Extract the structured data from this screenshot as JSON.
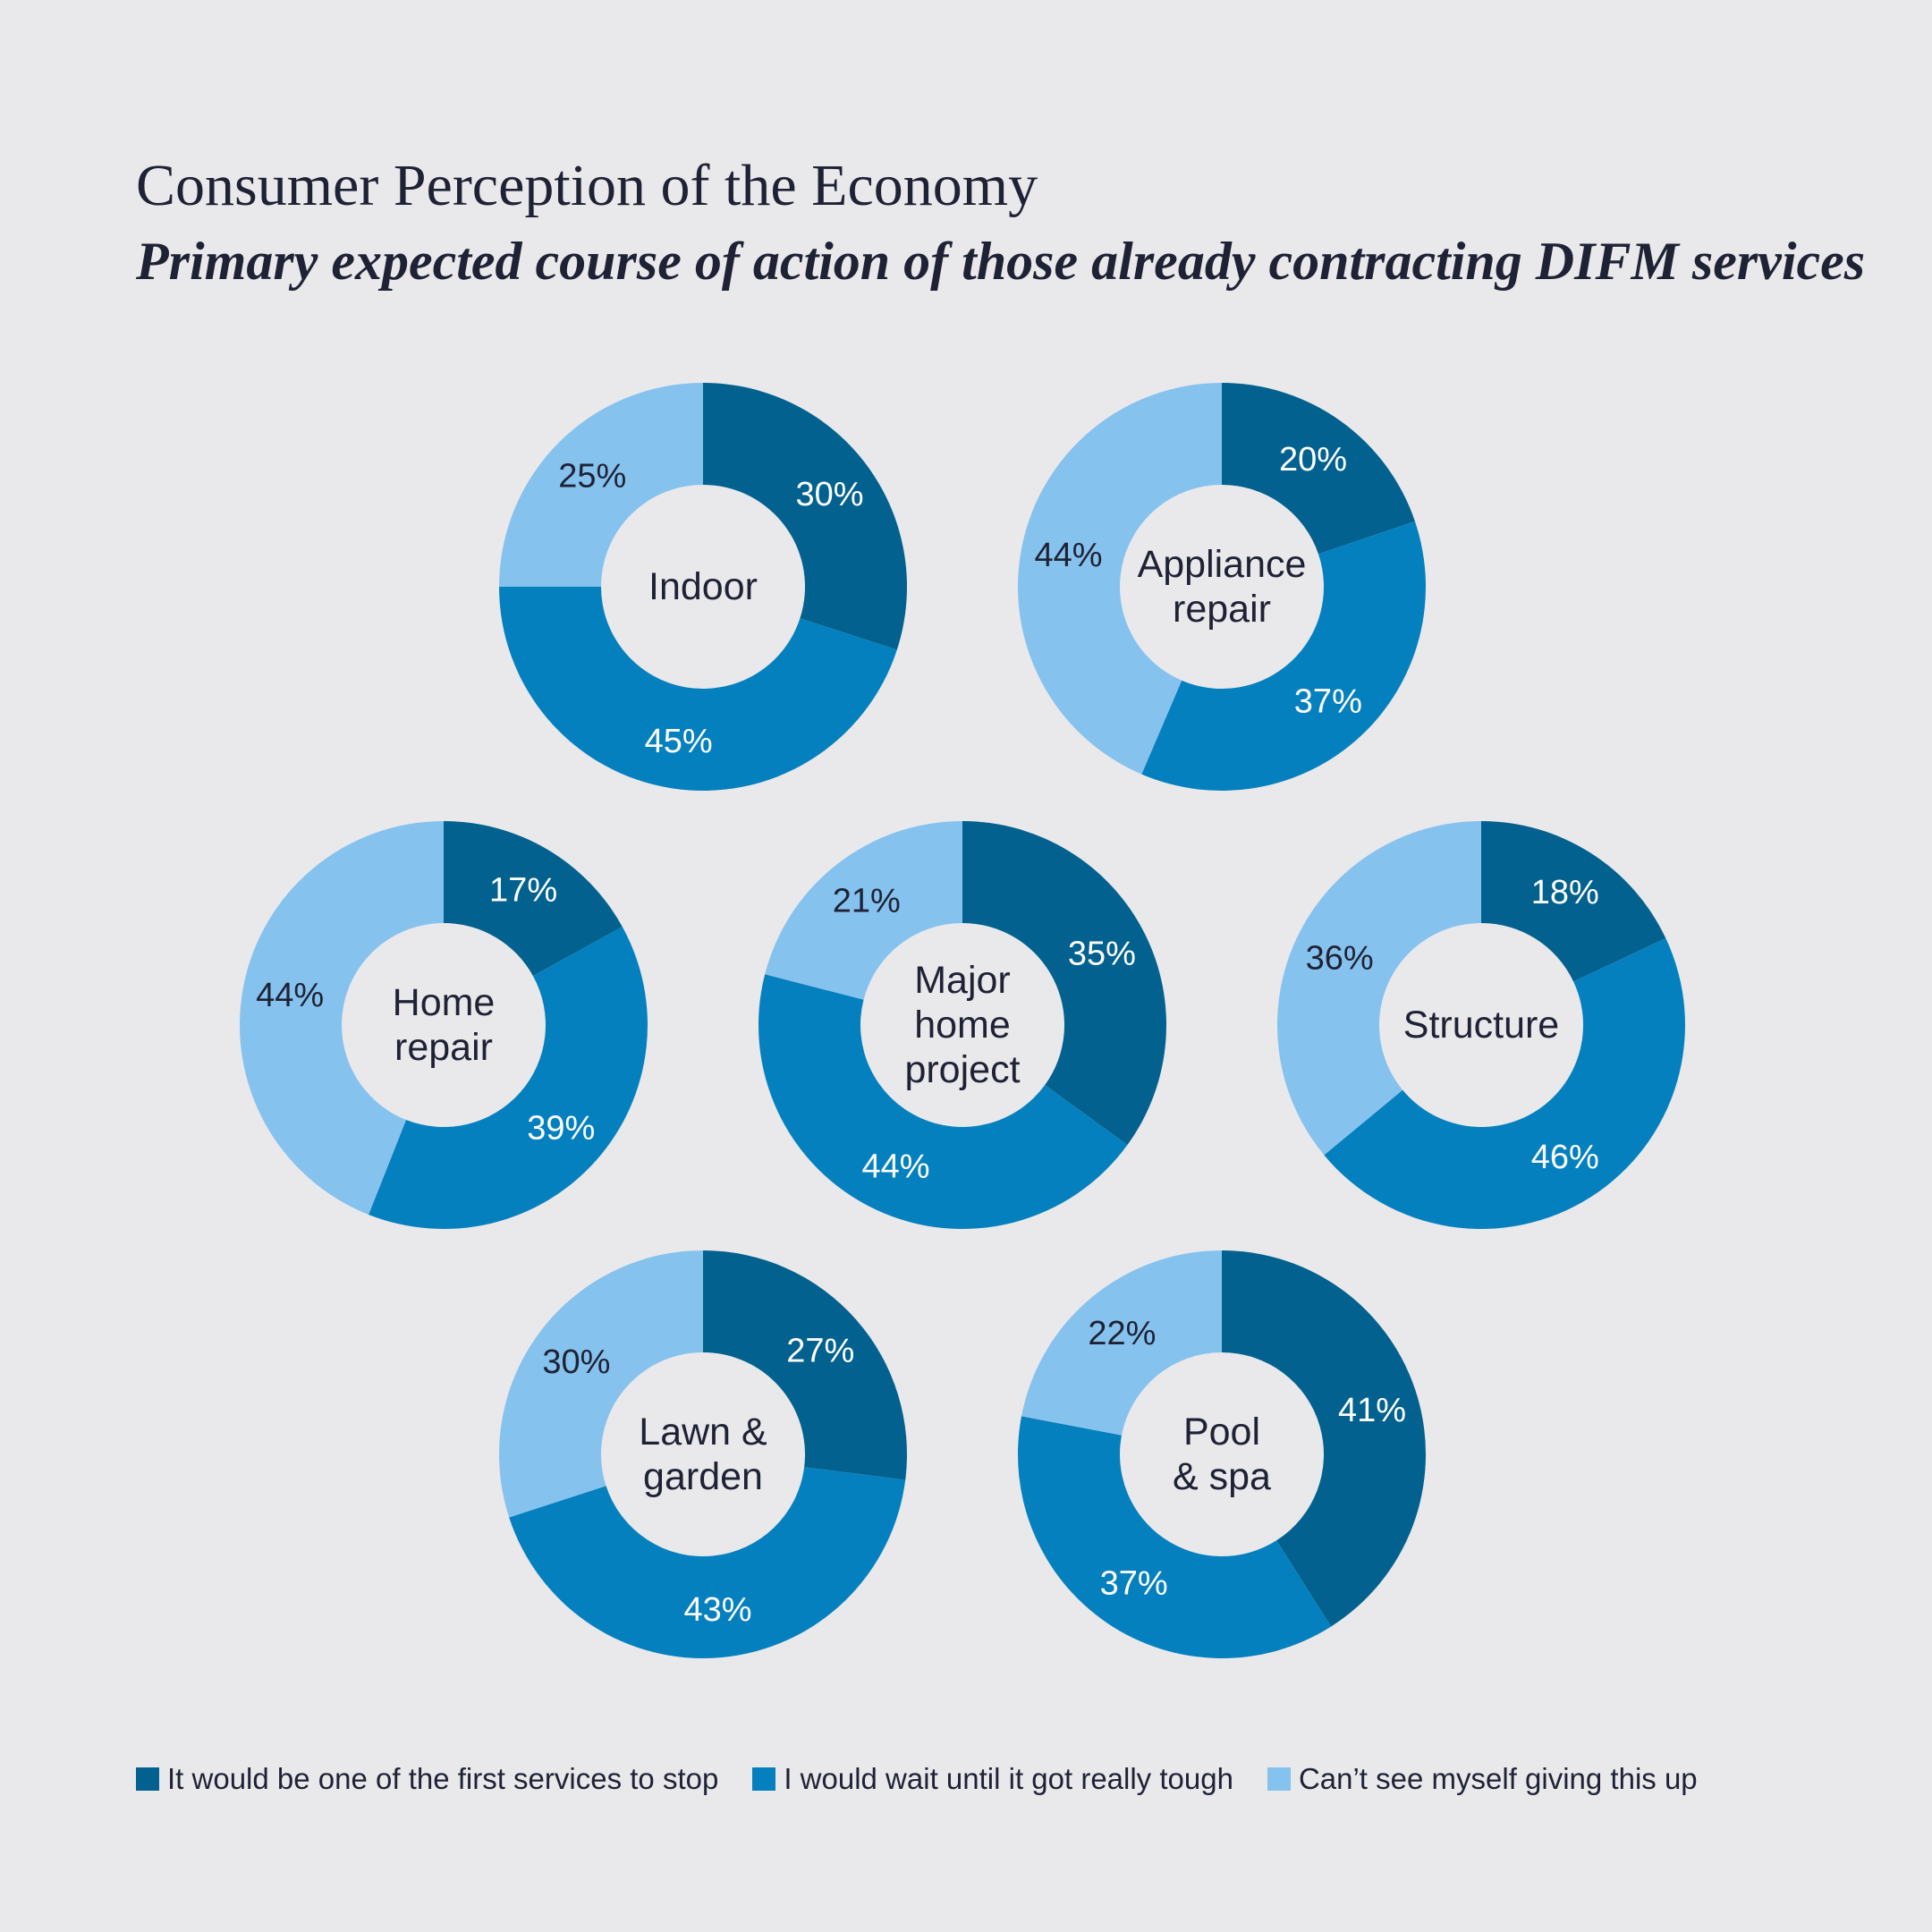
{
  "title": "Consumer Perception of the Economy",
  "subtitle": "Primary expected course of action of those already contracting DIFM services",
  "chart_data": {
    "type": "pie",
    "variant": "donut",
    "series": [
      {
        "name": "It would be one of the first services to stop",
        "color": "#02618e"
      },
      {
        "name": "I would wait until it got really tough",
        "color": "#0580be"
      },
      {
        "name": "Can’t see myself giving this up",
        "color": "#86c2ee"
      }
    ],
    "charts": [
      {
        "label": [
          "Indoor"
        ],
        "values": [
          30,
          45,
          25
        ],
        "labels": [
          "30%",
          "45%",
          "25%"
        ]
      },
      {
        "label": [
          "Appliance",
          "repair"
        ],
        "values": [
          20,
          37,
          44
        ],
        "labels": [
          "20%",
          "37%",
          "44%"
        ]
      },
      {
        "label": [
          "Home",
          "repair"
        ],
        "values": [
          17,
          39,
          44
        ],
        "labels": [
          "17%",
          "39%",
          "44%"
        ]
      },
      {
        "label": [
          "Major",
          "home",
          "project"
        ],
        "values": [
          35,
          44,
          21
        ],
        "labels": [
          "35%",
          "44%",
          "21%"
        ]
      },
      {
        "label": [
          "Structure"
        ],
        "values": [
          18,
          46,
          36
        ],
        "labels": [
          "18%",
          "46%",
          "36%"
        ]
      },
      {
        "label": [
          "Lawn &",
          "garden"
        ],
        "values": [
          27,
          43,
          30
        ],
        "labels": [
          "27%",
          "43%",
          "30%"
        ]
      },
      {
        "label": [
          "Pool",
          "& spa"
        ],
        "values": [
          41,
          37,
          22
        ],
        "labels": [
          "41%",
          "37%",
          "22%"
        ]
      }
    ],
    "legend_position": "bottom",
    "label_colors": {
      "dark_text": "#1f2235",
      "light_text": "#ffffff"
    }
  },
  "legend": {
    "items": [
      {
        "label": "It would be one of the first services to stop",
        "color": "#02618e"
      },
      {
        "label": "I would wait until it got really tough",
        "color": "#0580be"
      },
      {
        "label": "Can’t see myself giving this up",
        "color": "#86c2ee"
      }
    ]
  }
}
